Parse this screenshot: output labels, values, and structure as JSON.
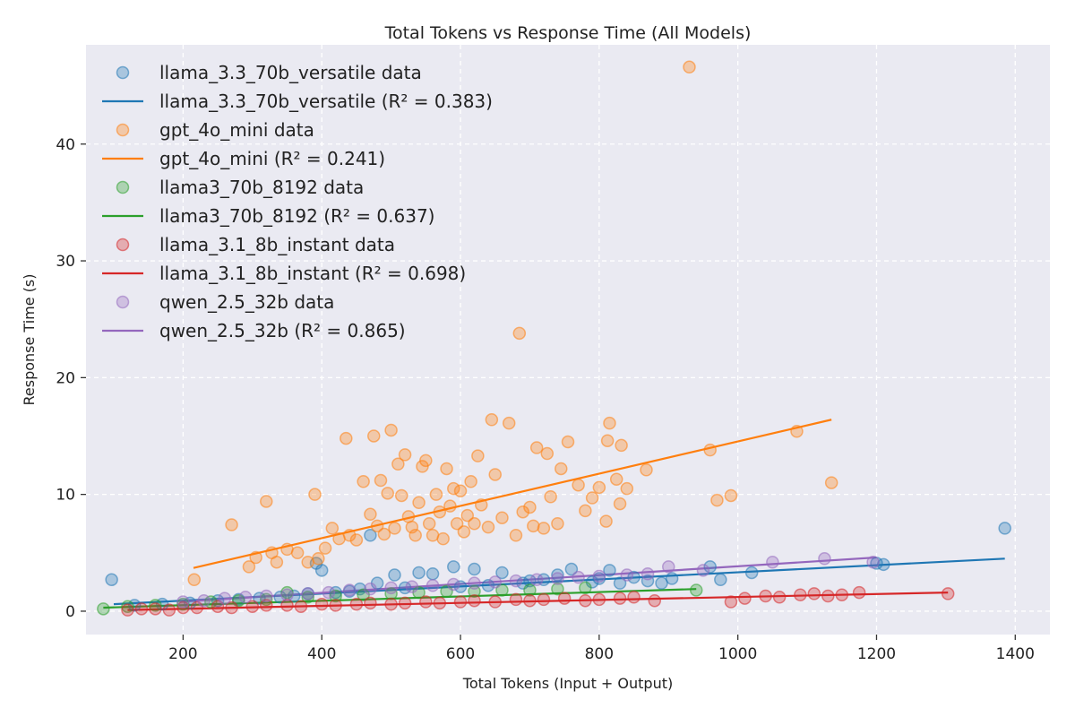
{
  "chart_data": {
    "type": "scatter",
    "title": "Total Tokens vs Response Time (All Models)",
    "xlabel": "Total Tokens (Input + Output)",
    "ylabel": "Response Time (s)",
    "xlim": [
      60,
      1450
    ],
    "ylim": [
      -2,
      48.5
    ],
    "xticks": [
      200,
      400,
      600,
      800,
      1000,
      1200,
      1400
    ],
    "yticks": [
      0,
      10,
      20,
      30,
      40
    ],
    "grid": true,
    "legend_position": "top-left",
    "series": [
      {
        "name": "llama_3.3_70b_versatile",
        "data_label": "llama_3.3_70b_versatile data",
        "fit_label": "llama_3.3_70b_versatile (R² = 0.383)",
        "r2": 0.383,
        "color": "#1f77b4",
        "points": [
          [
            97,
            2.7
          ],
          [
            130,
            0.5
          ],
          [
            170,
            0.6
          ],
          [
            210,
            0.7
          ],
          [
            250,
            0.9
          ],
          [
            280,
            1.0
          ],
          [
            310,
            1.1
          ],
          [
            340,
            1.2
          ],
          [
            360,
            1.3
          ],
          [
            380,
            1.5
          ],
          [
            392,
            4.1
          ],
          [
            400,
            3.5
          ],
          [
            420,
            1.6
          ],
          [
            440,
            1.7
          ],
          [
            455,
            1.9
          ],
          [
            470,
            6.5
          ],
          [
            480,
            2.4
          ],
          [
            505,
            3.1
          ],
          [
            520,
            2.0
          ],
          [
            540,
            3.3
          ],
          [
            560,
            3.2
          ],
          [
            590,
            3.8
          ],
          [
            600,
            2.1
          ],
          [
            620,
            3.6
          ],
          [
            640,
            2.2
          ],
          [
            660,
            3.3
          ],
          [
            690,
            2.4
          ],
          [
            700,
            2.6
          ],
          [
            720,
            2.7
          ],
          [
            740,
            3.1
          ],
          [
            760,
            3.6
          ],
          [
            790,
            2.5
          ],
          [
            800,
            2.8
          ],
          [
            815,
            3.5
          ],
          [
            830,
            2.4
          ],
          [
            850,
            2.9
          ],
          [
            870,
            2.6
          ],
          [
            890,
            2.4
          ],
          [
            905,
            2.8
          ],
          [
            960,
            3.8
          ],
          [
            975,
            2.7
          ],
          [
            1020,
            3.3
          ],
          [
            1200,
            4.1
          ],
          [
            1210,
            4.0
          ],
          [
            1385,
            7.1
          ]
        ],
        "fit": [
          [
            100,
            0.6
          ],
          [
            1385,
            4.5
          ]
        ]
      },
      {
        "name": "gpt_4o_mini",
        "data_label": "gpt_4o_mini data",
        "fit_label": "gpt_4o_mini (R² = 0.241)",
        "r2": 0.241,
        "color": "#ff7f0e",
        "points": [
          [
            216,
            2.7
          ],
          [
            270,
            7.4
          ],
          [
            295,
            3.8
          ],
          [
            305,
            4.6
          ],
          [
            320,
            9.4
          ],
          [
            328,
            5.0
          ],
          [
            335,
            4.2
          ],
          [
            350,
            5.3
          ],
          [
            365,
            5.0
          ],
          [
            380,
            4.2
          ],
          [
            390,
            10.0
          ],
          [
            395,
            4.5
          ],
          [
            405,
            5.4
          ],
          [
            415,
            7.1
          ],
          [
            425,
            6.2
          ],
          [
            435,
            14.8
          ],
          [
            440,
            6.5
          ],
          [
            450,
            6.1
          ],
          [
            460,
            11.1
          ],
          [
            470,
            8.3
          ],
          [
            475,
            15.0
          ],
          [
            480,
            7.3
          ],
          [
            485,
            11.2
          ],
          [
            490,
            6.6
          ],
          [
            495,
            10.1
          ],
          [
            500,
            15.5
          ],
          [
            505,
            7.1
          ],
          [
            510,
            12.6
          ],
          [
            515,
            9.9
          ],
          [
            520,
            13.4
          ],
          [
            525,
            8.1
          ],
          [
            530,
            7.2
          ],
          [
            535,
            6.5
          ],
          [
            540,
            9.3
          ],
          [
            545,
            12.4
          ],
          [
            550,
            12.9
          ],
          [
            555,
            7.5
          ],
          [
            560,
            6.5
          ],
          [
            565,
            10.0
          ],
          [
            570,
            8.5
          ],
          [
            575,
            6.2
          ],
          [
            580,
            12.2
          ],
          [
            585,
            9.0
          ],
          [
            590,
            10.5
          ],
          [
            595,
            7.5
          ],
          [
            600,
            10.3
          ],
          [
            605,
            6.8
          ],
          [
            610,
            8.2
          ],
          [
            615,
            11.1
          ],
          [
            620,
            7.5
          ],
          [
            625,
            13.3
          ],
          [
            630,
            9.1
          ],
          [
            640,
            7.2
          ],
          [
            645,
            16.4
          ],
          [
            650,
            11.7
          ],
          [
            660,
            8.0
          ],
          [
            670,
            16.1
          ],
          [
            680,
            6.5
          ],
          [
            685,
            23.8
          ],
          [
            690,
            8.5
          ],
          [
            700,
            8.9
          ],
          [
            705,
            7.3
          ],
          [
            710,
            14.0
          ],
          [
            720,
            7.1
          ],
          [
            725,
            13.5
          ],
          [
            730,
            9.8
          ],
          [
            740,
            7.5
          ],
          [
            745,
            12.2
          ],
          [
            755,
            14.5
          ],
          [
            770,
            10.8
          ],
          [
            780,
            8.6
          ],
          [
            790,
            9.7
          ],
          [
            800,
            10.6
          ],
          [
            810,
            7.7
          ],
          [
            812,
            14.6
          ],
          [
            815,
            16.1
          ],
          [
            825,
            11.3
          ],
          [
            830,
            9.2
          ],
          [
            832,
            14.2
          ],
          [
            840,
            10.5
          ],
          [
            868,
            12.1
          ],
          [
            930,
            46.6
          ],
          [
            960,
            13.8
          ],
          [
            970,
            9.5
          ],
          [
            990,
            9.9
          ],
          [
            1085,
            15.4
          ],
          [
            1135,
            11.0
          ]
        ],
        "fit": [
          [
            215,
            3.7
          ],
          [
            1135,
            16.4
          ]
        ]
      },
      {
        "name": "llama3_70b_8192",
        "data_label": "llama3_70b_8192 data",
        "fit_label": "llama3_70b_8192 (R² = 0.637)",
        "r2": 0.637,
        "color": "#2ca02c",
        "points": [
          [
            85,
            0.2
          ],
          [
            120,
            0.4
          ],
          [
            160,
            0.5
          ],
          [
            200,
            0.6
          ],
          [
            240,
            0.8
          ],
          [
            280,
            0.9
          ],
          [
            320,
            1.0
          ],
          [
            350,
            1.6
          ],
          [
            380,
            1.2
          ],
          [
            420,
            1.3
          ],
          [
            460,
            1.4
          ],
          [
            500,
            1.5
          ],
          [
            540,
            1.6
          ],
          [
            580,
            1.7
          ],
          [
            620,
            1.7
          ],
          [
            660,
            1.8
          ],
          [
            700,
            1.8
          ],
          [
            740,
            1.9
          ],
          [
            780,
            2.0
          ],
          [
            940,
            1.8
          ]
        ],
        "fit": [
          [
            85,
            0.3
          ],
          [
            940,
            1.9
          ]
        ]
      },
      {
        "name": "llama_3.1_8b_instant",
        "data_label": "llama_3.1_8b_instant data",
        "fit_label": "llama_3.1_8b_instant (R² = 0.698)",
        "r2": 0.698,
        "color": "#d62728",
        "points": [
          [
            120,
            0.1
          ],
          [
            140,
            0.2
          ],
          [
            160,
            0.2
          ],
          [
            180,
            0.1
          ],
          [
            200,
            0.3
          ],
          [
            220,
            0.3
          ],
          [
            250,
            0.4
          ],
          [
            270,
            0.3
          ],
          [
            300,
            0.4
          ],
          [
            320,
            0.5
          ],
          [
            350,
            0.5
          ],
          [
            370,
            0.4
          ],
          [
            400,
            0.6
          ],
          [
            420,
            0.5
          ],
          [
            450,
            0.6
          ],
          [
            470,
            0.7
          ],
          [
            500,
            0.6
          ],
          [
            520,
            0.7
          ],
          [
            550,
            0.8
          ],
          [
            570,
            0.7
          ],
          [
            600,
            0.8
          ],
          [
            620,
            0.9
          ],
          [
            650,
            0.8
          ],
          [
            680,
            1.0
          ],
          [
            700,
            0.9
          ],
          [
            720,
            1.0
          ],
          [
            750,
            1.1
          ],
          [
            780,
            0.9
          ],
          [
            800,
            1.0
          ],
          [
            830,
            1.1
          ],
          [
            850,
            1.2
          ],
          [
            880,
            0.9
          ],
          [
            990,
            0.8
          ],
          [
            1010,
            1.1
          ],
          [
            1040,
            1.3
          ],
          [
            1060,
            1.2
          ],
          [
            1090,
            1.4
          ],
          [
            1110,
            1.5
          ],
          [
            1130,
            1.3
          ],
          [
            1150,
            1.4
          ],
          [
            1175,
            1.6
          ],
          [
            1303,
            1.5
          ]
        ],
        "fit": [
          [
            120,
            0.1
          ],
          [
            1303,
            1.6
          ]
        ]
      },
      {
        "name": "qwen_2.5_32b",
        "data_label": "qwen_2.5_32b data",
        "fit_label": "qwen_2.5_32b (R² = 0.865)",
        "r2": 0.865,
        "color": "#9467bd",
        "points": [
          [
            200,
            0.8
          ],
          [
            230,
            0.9
          ],
          [
            260,
            1.1
          ],
          [
            290,
            1.2
          ],
          [
            320,
            1.3
          ],
          [
            350,
            1.4
          ],
          [
            380,
            1.5
          ],
          [
            410,
            1.6
          ],
          [
            440,
            1.8
          ],
          [
            470,
            1.9
          ],
          [
            500,
            2.0
          ],
          [
            530,
            2.1
          ],
          [
            560,
            2.2
          ],
          [
            590,
            2.3
          ],
          [
            620,
            2.4
          ],
          [
            650,
            2.5
          ],
          [
            680,
            2.6
          ],
          [
            710,
            2.7
          ],
          [
            740,
            2.8
          ],
          [
            770,
            2.9
          ],
          [
            800,
            3.0
          ],
          [
            840,
            3.1
          ],
          [
            870,
            3.2
          ],
          [
            900,
            3.8
          ],
          [
            950,
            3.5
          ],
          [
            1050,
            4.2
          ],
          [
            1125,
            4.5
          ],
          [
            1195,
            4.2
          ]
        ],
        "fit": [
          [
            195,
            0.8
          ],
          [
            1200,
            4.6
          ]
        ]
      }
    ]
  }
}
